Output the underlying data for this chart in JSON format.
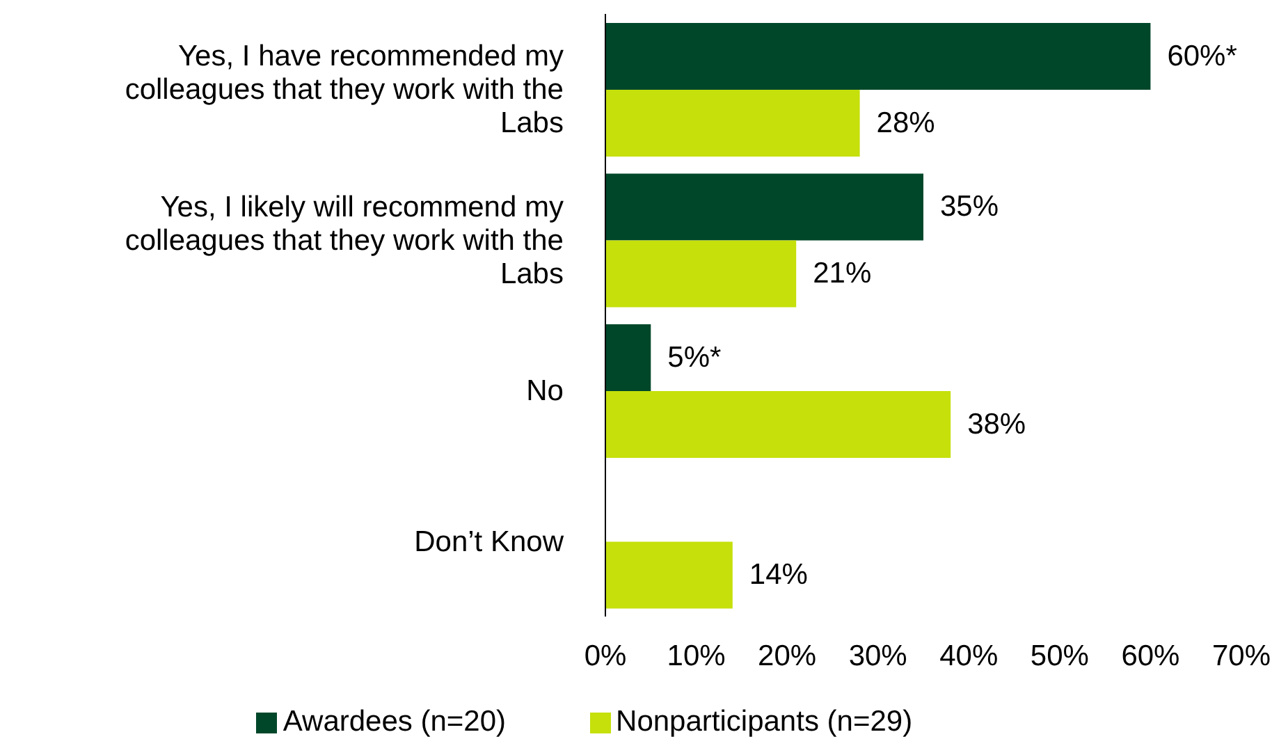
{
  "chart_data": {
    "type": "bar",
    "orientation": "horizontal",
    "categories": [
      "Yes, I have recommended my colleagues that they work with the Labs",
      "Yes, I likely will recommend my colleagues that they work with the Labs",
      "No",
      "Don’t Know"
    ],
    "series": [
      {
        "name": "Awardees (n=20)",
        "color": "#00472a",
        "values": [
          60,
          35,
          5,
          null
        ],
        "value_labels": [
          "60%*",
          "35%",
          "5%*",
          null
        ]
      },
      {
        "name": "Nonparticipants (n=29)",
        "color": "#c5e00b",
        "values": [
          28,
          21,
          38,
          14
        ],
        "value_labels": [
          "28%",
          "21%",
          "38%",
          "14%"
        ]
      }
    ],
    "xlim": [
      0,
      70
    ],
    "xticks": [
      {
        "value": 0,
        "label": "0%"
      },
      {
        "value": 10,
        "label": "10%"
      },
      {
        "value": 20,
        "label": "20%"
      },
      {
        "value": 30,
        "label": "30%"
      },
      {
        "value": 40,
        "label": "40%"
      },
      {
        "value": 50,
        "label": "50%"
      },
      {
        "value": 60,
        "label": "60%"
      },
      {
        "value": 70,
        "label": "70%"
      }
    ],
    "legend": "bottom"
  }
}
